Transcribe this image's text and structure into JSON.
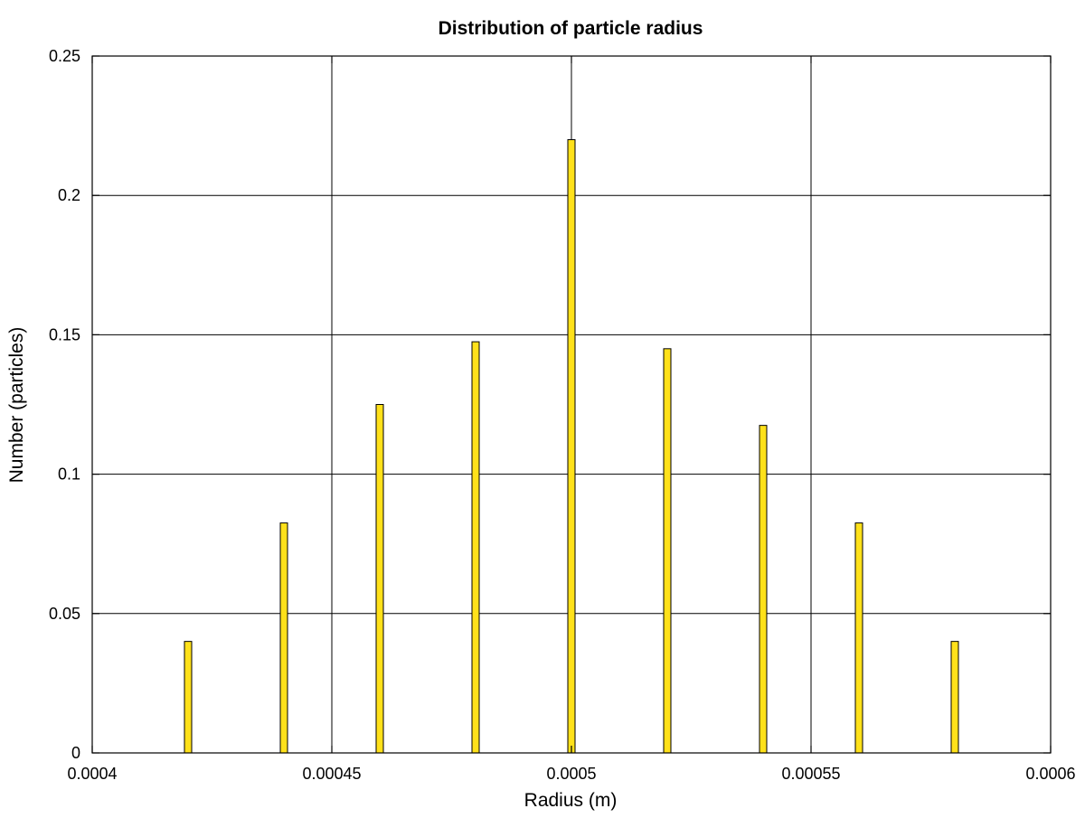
{
  "chart_data": {
    "type": "bar",
    "title": "Distribution of particle radius",
    "xlabel": "Radius (m)",
    "ylabel": "Number (particles)",
    "xlim": [
      0.0004,
      0.0006
    ],
    "ylim": [
      0,
      0.25
    ],
    "x_ticks": [
      "0.0004",
      "0.00045",
      "0.0005",
      "0.00055",
      "0.0006"
    ],
    "y_ticks": [
      "0",
      "0.05",
      "0.1",
      "0.15",
      "0.2",
      "0.25"
    ],
    "grid": true,
    "legend": "none",
    "bar_color": "#ffe11a",
    "bar_edge_color": "#000000",
    "x": [
      0.00042,
      0.00044,
      0.00046,
      0.00048,
      0.0005,
      0.00052,
      0.00054,
      0.00056,
      0.00058
    ],
    "values": [
      0.04,
      0.0825,
      0.125,
      0.1475,
      0.22,
      0.145,
      0.1175,
      0.0825,
      0.04
    ]
  }
}
